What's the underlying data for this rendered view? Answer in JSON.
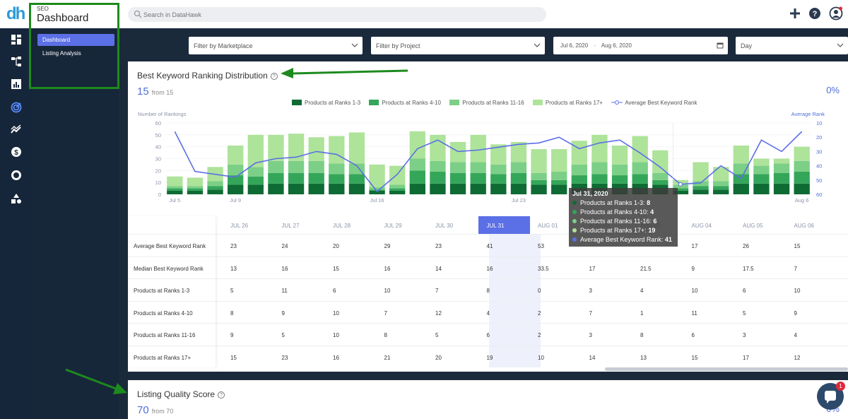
{
  "app": {
    "section_small": "SEO",
    "section_title": "Dashboard",
    "logo_text": "dh"
  },
  "search": {
    "placeholder": "Search in DataHawk"
  },
  "topbar_icons": [
    "plus-icon",
    "help-icon",
    "user-icon"
  ],
  "rail_icons": [
    "dashboard-icon",
    "hierarchy-icon",
    "bar-chart-icon",
    "seo-icon",
    "trend-icon",
    "dollar-icon",
    "ring-icon",
    "shapes-icon"
  ],
  "submenu": {
    "items": [
      {
        "label": "Dashboard",
        "active": true
      },
      {
        "label": "Listing Analysis",
        "active": false
      }
    ]
  },
  "filters": {
    "marketplace": "Filter by Marketplace",
    "project": "Filter by Project",
    "date_start": "Jul 6, 2020",
    "date_sep": "-",
    "date_end": "Aug 6, 2020",
    "granularity": "Day"
  },
  "panel": {
    "title": "Best Keyword Ranking Distribution",
    "count": "15",
    "from": "from 15",
    "pct": "0%"
  },
  "chart_data": {
    "type": "bar",
    "title": "Best Keyword Ranking Distribution",
    "ylabel": "Number of Rankings",
    "y2label": "Average Rank",
    "ylim": [
      0,
      60
    ],
    "y2lim": [
      10,
      60
    ],
    "y_ticks": [
      "0",
      "10",
      "20",
      "30",
      "40",
      "50",
      "60"
    ],
    "y2_ticks": [
      "10",
      "20",
      "30",
      "40",
      "50",
      "60"
    ],
    "x_tick_labels": [
      {
        "label": "Jul 5",
        "index": 0
      },
      {
        "label": "Jul 9",
        "index": 3
      },
      {
        "label": "Jul 16",
        "index": 10
      },
      {
        "label": "Jul 23",
        "index": 17
      },
      {
        "label": "Aug 6",
        "index": 31
      }
    ],
    "legend": [
      {
        "name": "Products at Ranks 1-3",
        "color": "#0f6b34"
      },
      {
        "name": "Products at Ranks 4-10",
        "color": "#34a65a"
      },
      {
        "name": "Products at Ranks 11-16",
        "color": "#7ccf86"
      },
      {
        "name": "Products at Ranks 17+",
        "color": "#aee39a"
      },
      {
        "name": "Average Best Keyword Rank",
        "color": "#5b6fe6"
      }
    ],
    "series": [
      {
        "name": "Products at Ranks 1-3",
        "values": [
          3,
          3,
          4,
          8,
          8,
          9,
          9,
          9,
          9,
          9,
          3,
          3,
          9,
          9,
          9,
          9,
          9,
          9,
          8,
          8,
          9,
          9,
          9,
          9,
          8,
          3,
          4,
          4,
          9,
          9,
          9,
          9
        ]
      },
      {
        "name": "Products at Ranks 4-10",
        "values": [
          2,
          2,
          3,
          8,
          7,
          9,
          9,
          9,
          8,
          8,
          1,
          2,
          11,
          10,
          9,
          9,
          8,
          9,
          4,
          4,
          7,
          8,
          7,
          8,
          4,
          2,
          3,
          3,
          8,
          8,
          9,
          10
        ]
      },
      {
        "name": "Products at Ranks 11-16",
        "values": [
          2,
          2,
          4,
          9,
          8,
          10,
          10,
          10,
          9,
          9,
          2,
          3,
          10,
          9,
          9,
          9,
          8,
          9,
          6,
          7,
          9,
          10,
          9,
          10,
          6,
          3,
          4,
          4,
          9,
          7,
          8,
          9
        ]
      },
      {
        "name": "Products at Ranks 17+",
        "values": [
          8,
          7,
          12,
          16,
          27,
          22,
          23,
          20,
          23,
          26,
          19,
          16,
          23,
          22,
          17,
          23,
          17,
          17,
          20,
          19,
          20,
          23,
          16,
          22,
          19,
          4,
          16,
          12,
          15,
          6,
          4,
          12
        ]
      },
      {
        "name": "Average Best Keyword Rank",
        "axis": "right",
        "values": [
          16,
          44,
          46,
          48,
          38,
          35,
          34,
          30,
          32,
          40,
          58,
          46,
          28,
          22,
          30,
          29,
          27,
          25,
          24,
          20,
          28,
          24,
          22,
          31,
          41,
          53,
          52,
          40,
          49,
          22,
          30,
          16
        ]
      }
    ],
    "tooltip": {
      "title": "Jul 31, 2020",
      "rows": [
        {
          "label": "Products at Ranks 1-3:",
          "value": "8",
          "color": "#0f6b34"
        },
        {
          "label": "Products at Ranks 4-10:",
          "value": "4",
          "color": "#34a65a"
        },
        {
          "label": "Products at Ranks 11-16:",
          "value": "6",
          "color": "#7ccf86"
        },
        {
          "label": "Products at Ranks 17+:",
          "value": "19",
          "color": "#aee39a"
        },
        {
          "label": "Average Best Keyword Rank:",
          "value": "41",
          "color": "#5b6fe6"
        }
      ]
    }
  },
  "table": {
    "columns": [
      "JUL 26",
      "JUL 27",
      "JUL 28",
      "JUL 29",
      "JUL 30",
      "JUL 31",
      "AUG 01",
      "AUG 02",
      "AUG 03",
      "AUG 04",
      "AUG 05",
      "AUG 06"
    ],
    "selected_index": 5,
    "rows": [
      {
        "label": "Average Best Keyword Rank",
        "values": [
          "23",
          "24",
          "20",
          "29",
          "23",
          "41",
          "53",
          "",
          "",
          "17",
          "26",
          "15"
        ]
      },
      {
        "label": "Median Best Keyword Rank",
        "values": [
          "13",
          "16",
          "15",
          "16",
          "14",
          "16",
          "33.5",
          "17",
          "21.5",
          "9",
          "17.5",
          "7"
        ]
      },
      {
        "label": "Products at Ranks 1-3",
        "values": [
          "5",
          "11",
          "6",
          "10",
          "7",
          "8",
          "0",
          "3",
          "4",
          "10",
          "6",
          "10"
        ]
      },
      {
        "label": "Products at Ranks 4-10",
        "values": [
          "8",
          "9",
          "10",
          "7",
          "12",
          "4",
          "2",
          "7",
          "1",
          "11",
          "5",
          "9"
        ]
      },
      {
        "label": "Products at Ranks 11-16",
        "values": [
          "9",
          "5",
          "10",
          "8",
          "5",
          "6",
          "2",
          "3",
          "8",
          "6",
          "3",
          "4"
        ]
      },
      {
        "label": "Products at Ranks 17+",
        "values": [
          "15",
          "23",
          "16",
          "21",
          "20",
          "19",
          "10",
          "14",
          "13",
          "15",
          "17",
          "12"
        ]
      }
    ]
  },
  "panel2": {
    "title": "Listing Quality Score",
    "count": "70",
    "from": "from 70",
    "pct": "0%"
  },
  "chat": {
    "badge": "1"
  }
}
